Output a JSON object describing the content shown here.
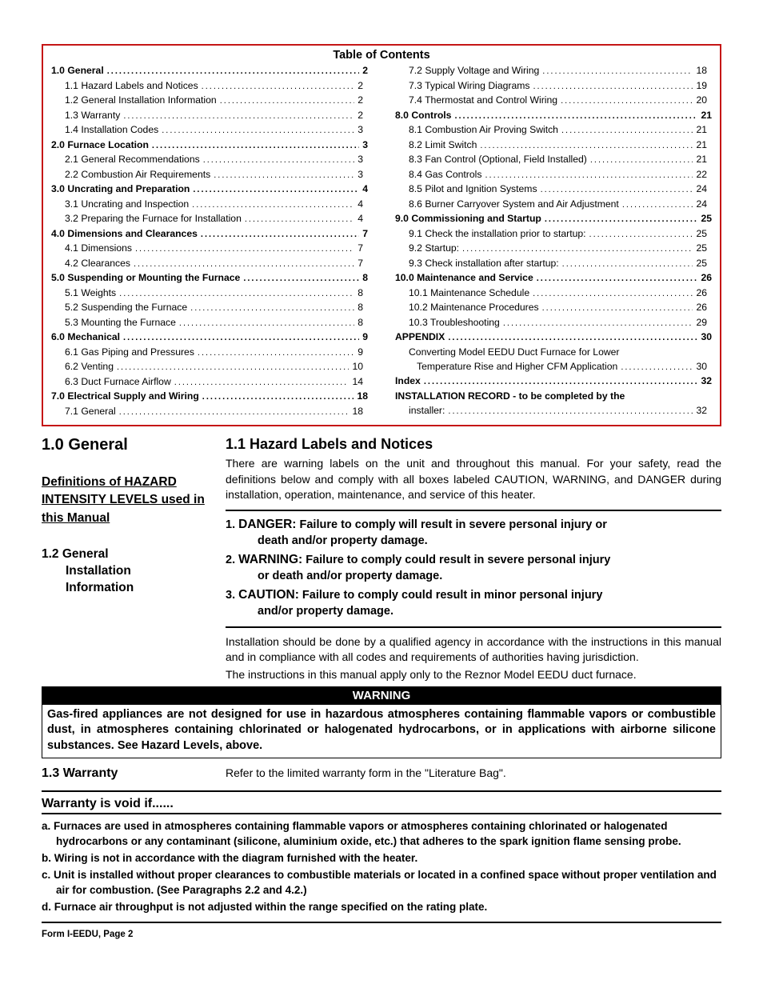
{
  "colors": {
    "toc_border": "#c51616",
    "rule": "#000000",
    "warning_bg": "#000000",
    "warning_fg": "#ffffff"
  },
  "toc": {
    "title": "Table of Contents",
    "left": [
      {
        "lvl": 1,
        "label": "1.0 General",
        "page": "2"
      },
      {
        "lvl": 2,
        "label": "1.1 Hazard Labels and Notices",
        "page": "2"
      },
      {
        "lvl": 2,
        "label": "1.2 General Installation Information",
        "page": "2"
      },
      {
        "lvl": 2,
        "label": "1.3 Warranty",
        "page": "2"
      },
      {
        "lvl": 2,
        "label": "1.4 Installation Codes",
        "page": "3"
      },
      {
        "lvl": 1,
        "label": "2.0 Furnace Location",
        "page": "3"
      },
      {
        "lvl": 2,
        "label": "2.1 General Recommendations",
        "page": "3"
      },
      {
        "lvl": 2,
        "label": "2.2 Combustion Air Requirements",
        "page": "3"
      },
      {
        "lvl": 1,
        "label": "3.0 Uncrating and Preparation",
        "page": "4"
      },
      {
        "lvl": 2,
        "label": "3.1 Uncrating and Inspection",
        "page": "4"
      },
      {
        "lvl": 2,
        "label": "3.2 Preparing the Furnace for Installation",
        "page": "4"
      },
      {
        "lvl": 1,
        "label": "4.0 Dimensions and Clearances",
        "page": "7"
      },
      {
        "lvl": 2,
        "label": "4.1 Dimensions",
        "page": "7"
      },
      {
        "lvl": 2,
        "label": "4.2 Clearances",
        "page": "7"
      },
      {
        "lvl": 1,
        "label": "5.0 Suspending or Mounting the Furnace",
        "page": "8"
      },
      {
        "lvl": 2,
        "label": "5.1 Weights",
        "page": "8"
      },
      {
        "lvl": 2,
        "label": "5.2 Suspending the Furnace",
        "page": "8"
      },
      {
        "lvl": 2,
        "label": "5.3 Mounting the Furnace",
        "page": "8"
      },
      {
        "lvl": 1,
        "label": "6.0 Mechanical",
        "page": "9"
      },
      {
        "lvl": 2,
        "label": "6.1 Gas Piping and Pressures",
        "page": "9"
      },
      {
        "lvl": 2,
        "label": "6.2 Venting",
        "page": "10"
      },
      {
        "lvl": 2,
        "label": "6.3 Duct Furnace Airflow",
        "page": "14"
      },
      {
        "lvl": 1,
        "label": "7.0 Electrical Supply and Wiring",
        "page": "18"
      },
      {
        "lvl": 2,
        "label": "7.1 General",
        "page": "18"
      }
    ],
    "right": [
      {
        "lvl": 2,
        "label": "7.2 Supply Voltage and Wiring",
        "page": "18"
      },
      {
        "lvl": 2,
        "label": "7.3 Typical Wiring Diagrams",
        "page": "19"
      },
      {
        "lvl": 2,
        "label": "7.4 Thermostat and Control Wiring",
        "page": "20"
      },
      {
        "lvl": 1,
        "label": "8.0 Controls",
        "page": "21"
      },
      {
        "lvl": 2,
        "label": "8.1 Combustion Air Proving Switch",
        "page": "21"
      },
      {
        "lvl": 2,
        "label": "8.2 Limit Switch",
        "page": "21"
      },
      {
        "lvl": 2,
        "label": "8.3 Fan Control (Optional, Field Installed)",
        "page": "21"
      },
      {
        "lvl": 2,
        "label": "8.4 Gas Controls",
        "page": "22"
      },
      {
        "lvl": 2,
        "label": "8.5 Pilot and Ignition Systems",
        "page": "24"
      },
      {
        "lvl": 2,
        "label": "8.6 Burner Carryover System and Air Adjustment",
        "page": "24"
      },
      {
        "lvl": 1,
        "label": "9.0 Commissioning and Startup",
        "page": "25"
      },
      {
        "lvl": 2,
        "label": "9.1 Check the installation prior to startup:",
        "page": "25"
      },
      {
        "lvl": 2,
        "label": "9.2 Startup:",
        "page": "25"
      },
      {
        "lvl": 2,
        "label": "9.3 Check installation after startup:",
        "page": "25"
      },
      {
        "lvl": 1,
        "label": "10.0 Maintenance and Service",
        "page": "26"
      },
      {
        "lvl": 2,
        "label": "10.1 Maintenance Schedule",
        "page": "26"
      },
      {
        "lvl": 2,
        "label": "10.2 Maintenance Procedures",
        "page": "26"
      },
      {
        "lvl": 2,
        "label": "10.3 Troubleshooting",
        "page": "29"
      },
      {
        "lvl": 1,
        "label": "APPENDIX",
        "page": "30"
      },
      {
        "lvl": 2,
        "label": "Converting Model EEDU Duct Furnace for Lower",
        "page": ""
      },
      {
        "lvl": 3,
        "label": "Temperature Rise and Higher CFM Application",
        "page": "30"
      },
      {
        "lvl": 1,
        "label": "Index",
        "page": "32"
      },
      {
        "lvl": 1,
        "label": "INSTALLATION RECORD - to be completed by the",
        "page": ""
      },
      {
        "lvl": 2,
        "label": "installer:",
        "page": "32"
      }
    ]
  },
  "s10_title": "1.0 General",
  "s11_title": "1.1 Hazard Labels and Notices",
  "s11_body": "There are warning labels on the unit and throughout this manual. For your safety, read the definitions below and comply with all boxes labeled CAUTION, WARNING, and DANGER during installation, operation, maintenance, and service of this heater.",
  "defs_heading": "Definitions of HAZARD INTENSITY LEVELS used in this Manual",
  "defs": [
    {
      "n": "1.",
      "term": "DANGER:",
      "rest": "Failure to comply will result in severe personal injury or",
      "cont": "death and/or property damage."
    },
    {
      "n": "2.",
      "term": "WARNING:",
      "rest": "Failure to comply could result in severe personal injury",
      "cont": "or death and/or property damage."
    },
    {
      "n": "3.",
      "term": "CAUTION:",
      "rest": "Failure to comply could result in minor personal injury",
      "cont": "and/or property damage."
    }
  ],
  "s12_title_a": "1.2 General",
  "s12_title_b": "Installation",
  "s12_title_c": "Information",
  "s12_p1": "Installation should be done by a qualified agency in accordance with the instructions in this manual and in compliance with all codes and requirements of authorities having jurisdiction.",
  "s12_p2": "The instructions in this manual apply only to the Reznor Model EEDU duct furnace.",
  "warning_hdr": "WARNING",
  "warning_body": "Gas-fired appliances are not designed for use in hazardous atmospheres containing flammable vapors or combustible dust, in atmospheres containing chlorinated or halogenated hydrocarbons, or in applications with airborne silicone substances. See Hazard Levels, above.",
  "s13_title": "1.3 Warranty",
  "s13_body": "Refer to the limited warranty form in the \"Literature Bag\".",
  "void_hdr": "Warranty is void if......",
  "void_items": [
    "a. Furnaces are used in atmospheres containing flammable vapors or atmospheres containing chlorinated or halogenated hydrocarbons or any contaminant (silicone, aluminium oxide, etc.) that adheres to the spark ignition flame sensing probe.",
    "b. Wiring is not in accordance with the diagram furnished with the heater.",
    "c. Unit is installed without proper clearances to combustible materials or located in a confined space without proper ventilation and air for combustion. (See Paragraphs 2.2 and 4.2.)",
    "d. Furnace air throughput is not adjusted within the range specified on the rating plate."
  ],
  "footer": "Form I-EEDU, Page 2"
}
